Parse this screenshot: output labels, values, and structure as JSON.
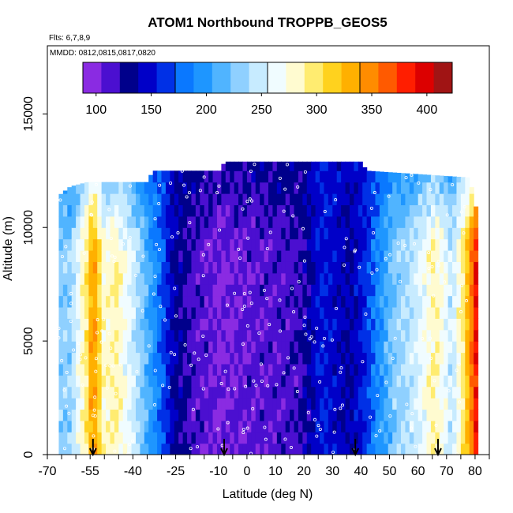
{
  "chart_data": {
    "type": "heatmap",
    "title": "ATOM1 Northbound TROPPB_GEOS5",
    "flights_note": "Flts: 6,7,8,9",
    "dates_note": "MMDD: 0812,0815,0817,0820",
    "xlabel": "Latitude (deg N)",
    "ylabel": "Altitude (m)",
    "xlim": [
      -70,
      85
    ],
    "ylim": [
      0,
      18000
    ],
    "x_ticks": [
      -70,
      -55,
      -40,
      -25,
      -10,
      0,
      10,
      20,
      30,
      40,
      50,
      60,
      70,
      80
    ],
    "x_minor_ticks": [
      -65,
      -60,
      -50,
      -45,
      -35,
      -30,
      -20,
      -15,
      -5,
      5,
      15,
      25,
      35,
      45,
      55,
      65,
      75,
      85
    ],
    "y_ticks": [
      0,
      5000,
      10000,
      15000
    ],
    "colorbar": {
      "range": [
        88,
        423
      ],
      "ticks": [
        100,
        150,
        200,
        250,
        300,
        350,
        400
      ],
      "colors": [
        "#8a2be2",
        "#4b0fd0",
        "#00008b",
        "#0000c8",
        "#0030e6",
        "#0a78ff",
        "#1e96ff",
        "#50b4ff",
        "#8fd0ff",
        "#c7ebff",
        "#f0fcff",
        "#fffbd0",
        "#ffec70",
        "#ffd21e",
        "#ffb000",
        "#ff8c00",
        "#ff5a00",
        "#ff1e00",
        "#dc0000",
        "#a01414"
      ],
      "dividers": [
        0,
        5,
        10,
        15,
        20
      ]
    },
    "field": {
      "lat_profile": [
        {
          "lat": -62,
          "v": 230
        },
        {
          "lat": -56,
          "v": 300
        },
        {
          "lat": -54,
          "v": 350
        },
        {
          "lat": -50,
          "v": 275
        },
        {
          "lat": -46,
          "v": 290
        },
        {
          "lat": -42,
          "v": 262
        },
        {
          "lat": -38,
          "v": 238
        },
        {
          "lat": -34,
          "v": 205
        },
        {
          "lat": -30,
          "v": 175
        },
        {
          "lat": -26,
          "v": 140
        },
        {
          "lat": -20,
          "v": 118
        },
        {
          "lat": -10,
          "v": 102
        },
        {
          "lat": 0,
          "v": 108
        },
        {
          "lat": 10,
          "v": 112
        },
        {
          "lat": 18,
          "v": 118
        },
        {
          "lat": 22,
          "v": 135
        },
        {
          "lat": 26,
          "v": 155
        },
        {
          "lat": 30,
          "v": 150
        },
        {
          "lat": 36,
          "v": 135
        },
        {
          "lat": 40,
          "v": 150
        },
        {
          "lat": 46,
          "v": 190
        },
        {
          "lat": 52,
          "v": 230
        },
        {
          "lat": 58,
          "v": 245
        },
        {
          "lat": 62,
          "v": 265
        },
        {
          "lat": 66,
          "v": 290
        },
        {
          "lat": 72,
          "v": 245
        },
        {
          "lat": 76,
          "v": 300
        },
        {
          "lat": 79,
          "v": 360
        },
        {
          "lat": 81,
          "v": 400
        }
      ],
      "lat_start": -66,
      "lat_end": 81,
      "top_profile": [
        {
          "lat": -66,
          "alt": 11400
        },
        {
          "lat": -62,
          "alt": 11800
        },
        {
          "lat": -56,
          "alt": 12000
        },
        {
          "lat": -40,
          "alt": 12000
        },
        {
          "lat": -35,
          "alt": 12000
        },
        {
          "lat": -33,
          "alt": 12500
        },
        {
          "lat": -9,
          "alt": 12500
        },
        {
          "lat": -8,
          "alt": 12900
        },
        {
          "lat": 40,
          "alt": 12900
        },
        {
          "lat": 42,
          "alt": 12500
        },
        {
          "lat": 78,
          "alt": 12200
        },
        {
          "lat": 81,
          "alt": 10500
        }
      ]
    },
    "sounding_arrows_lat": [
      -54,
      -8,
      38,
      67
    ]
  }
}
